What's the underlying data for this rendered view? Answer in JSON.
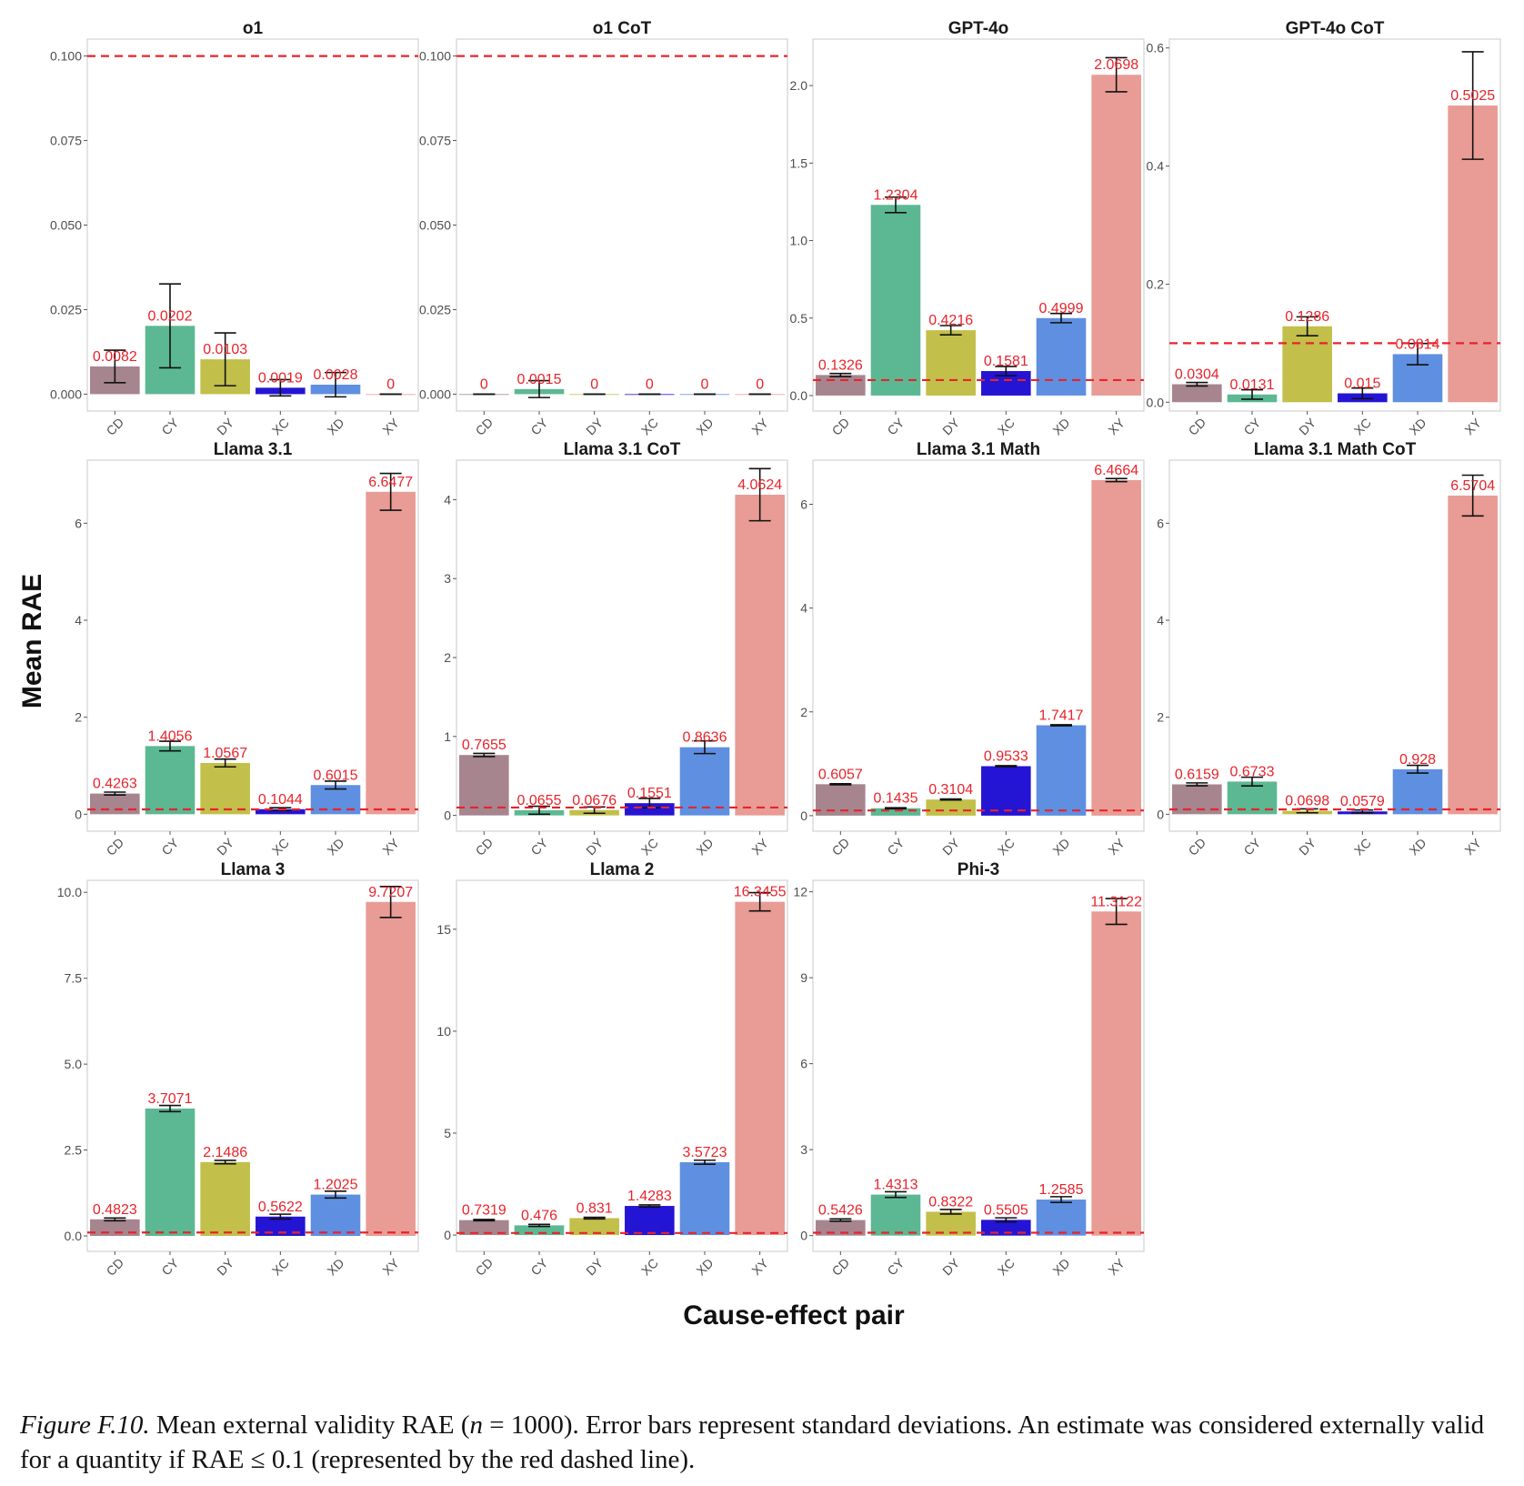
{
  "chart_data": {
    "type": "bar",
    "layout": "facet-grid",
    "ylabel": "Mean RAE",
    "xlabel": "Cause-effect pair",
    "categories": [
      "CD",
      "CY",
      "DY",
      "XC",
      "XD",
      "XY"
    ],
    "category_colors": [
      "#a6858f",
      "#5cb893",
      "#c2bf4a",
      "#2414d4",
      "#5f8fe0",
      "#e89c95"
    ],
    "threshold": 0.1,
    "threshold_color": "#e8232b",
    "label_color": "#e8232b",
    "panels": [
      {
        "title": "o1",
        "values": [
          0.0082,
          0.0202,
          0.0103,
          0.0019,
          0.0028,
          0
        ],
        "labels": [
          "0.0082",
          "0.0202",
          "0.0103",
          "0.0019",
          "0.0028",
          "0"
        ],
        "sd": [
          0.0048,
          0.0124,
          0.0078,
          0.0024,
          0.0036,
          0
        ],
        "ylim": [
          -0.005,
          0.105
        ],
        "ticks": [
          "0.000",
          "0.025",
          "0.050",
          "0.075",
          "0.100"
        ],
        "tick_values": [
          0,
          0.025,
          0.05,
          0.075,
          0.1
        ]
      },
      {
        "title": "o1 CoT",
        "values": [
          0,
          0.0015,
          0,
          0,
          0,
          0
        ],
        "labels": [
          "0",
          "0.0015",
          "0",
          "0",
          "0",
          "0"
        ],
        "sd": [
          0,
          0.0025,
          0,
          0,
          0,
          0
        ],
        "ylim": [
          -0.005,
          0.105
        ],
        "ticks": [
          "0.000",
          "0.025",
          "0.050",
          "0.075",
          "0.100"
        ],
        "tick_values": [
          0,
          0.025,
          0.05,
          0.075,
          0.1
        ]
      },
      {
        "title": "GPT-4o",
        "values": [
          0.1326,
          1.2304,
          0.4216,
          0.1581,
          0.4999,
          2.0698
        ],
        "labels": [
          "0.1326",
          "1.2304",
          "0.4216",
          "0.1581",
          "0.4999",
          "2.0698"
        ],
        "sd": [
          0.01,
          0.05,
          0.03,
          0.03,
          0.03,
          0.11
        ],
        "ylim": [
          -0.1,
          2.3
        ],
        "ticks": [
          "0.0",
          "0.5",
          "1.0",
          "1.5",
          "2.0"
        ],
        "tick_values": [
          0,
          0.5,
          1,
          1.5,
          2
        ]
      },
      {
        "title": "GPT-4o CoT",
        "values": [
          0.0304,
          0.0131,
          0.1286,
          0.015,
          0.0814,
          0.5025
        ],
        "labels": [
          "0.0304",
          "0.0131",
          "0.1286",
          "0.015",
          "0.0814",
          "0.5025"
        ],
        "sd": [
          0.003,
          0.008,
          0.016,
          0.009,
          0.018,
          0.091
        ],
        "ylim": [
          -0.015,
          0.615
        ],
        "ticks": [
          "0.0",
          "0.2",
          "0.4",
          "0.6"
        ],
        "tick_values": [
          0,
          0.2,
          0.4,
          0.6
        ]
      },
      {
        "title": "Llama 3.1",
        "values": [
          0.4263,
          1.4056,
          1.0567,
          0.1044,
          0.6015,
          6.6477
        ],
        "labels": [
          "0.4263",
          "1.4056",
          "1.0567",
          "0.1044",
          "0.6015",
          "6.6477"
        ],
        "sd": [
          0.03,
          0.1,
          0.08,
          0.03,
          0.08,
          0.38
        ],
        "ylim": [
          -0.35,
          7.3
        ],
        "ticks": [
          "0",
          "2",
          "4",
          "6"
        ],
        "tick_values": [
          0,
          2,
          4,
          6
        ]
      },
      {
        "title": "Llama 3.1 CoT",
        "values": [
          0.7655,
          0.0655,
          0.0676,
          0.1551,
          0.8636,
          4.0624
        ],
        "labels": [
          "0.7655",
          "0.0655",
          "0.0676",
          "0.1551",
          "0.8636",
          "4.0624"
        ],
        "sd": [
          0.02,
          0.05,
          0.04,
          0.06,
          0.08,
          0.33
        ],
        "ylim": [
          -0.2,
          4.5
        ],
        "ticks": [
          "0",
          "1",
          "2",
          "3",
          "4"
        ],
        "tick_values": [
          0,
          1,
          2,
          3,
          4
        ]
      },
      {
        "title": "Llama 3.1 Math",
        "values": [
          0.6057,
          0.1435,
          0.3104,
          0.9533,
          1.7417,
          6.4664
        ],
        "labels": [
          "0.6057",
          "0.1435",
          "0.3104",
          "0.9533",
          "1.7417",
          "6.4664"
        ],
        "sd": [
          0.01,
          0.01,
          0.01,
          0.01,
          0.01,
          0.03
        ],
        "ylim": [
          -0.3,
          6.85
        ],
        "ticks": [
          "0",
          "2",
          "4",
          "6"
        ],
        "tick_values": [
          0,
          2,
          4,
          6
        ]
      },
      {
        "title": "Llama 3.1 Math CoT",
        "values": [
          0.6159,
          0.6733,
          0.0698,
          0.0579,
          0.928,
          6.5704
        ],
        "labels": [
          "0.6159",
          "0.6733",
          "0.0698",
          "0.0579",
          "0.928",
          "6.5704"
        ],
        "sd": [
          0.03,
          0.09,
          0.04,
          0.03,
          0.08,
          0.42
        ],
        "ylim": [
          -0.35,
          7.3
        ],
        "ticks": [
          "0",
          "2",
          "4",
          "6"
        ],
        "tick_values": [
          0,
          2,
          4,
          6
        ]
      },
      {
        "title": "Llama 3",
        "values": [
          0.4823,
          3.7071,
          2.1486,
          0.5622,
          1.2025,
          9.7207
        ],
        "labels": [
          "0.4823",
          "3.7071",
          "2.1486",
          "0.5622",
          "1.2025",
          "9.7207"
        ],
        "sd": [
          0.04,
          0.09,
          0.05,
          0.07,
          0.1,
          0.45
        ],
        "ylim": [
          -0.45,
          10.35
        ],
        "ticks": [
          "0.0",
          "2.5",
          "5.0",
          "7.5",
          "10.0"
        ],
        "tick_values": [
          0,
          2.5,
          5,
          7.5,
          10
        ]
      },
      {
        "title": "Llama 2",
        "values": [
          0.7319,
          0.476,
          0.831,
          1.4283,
          3.5723,
          16.3455
        ],
        "labels": [
          "0.7319",
          "0.476",
          "0.831",
          "1.4283",
          "3.5723",
          "16.3455"
        ],
        "sd": [
          0.03,
          0.05,
          0.04,
          0.05,
          0.1,
          0.45
        ],
        "ylim": [
          -0.8,
          17.4
        ],
        "ticks": [
          "0",
          "5",
          "10",
          "15"
        ],
        "tick_values": [
          0,
          5,
          10,
          15
        ]
      },
      {
        "title": "Phi-3",
        "values": [
          0.5426,
          1.4313,
          0.8322,
          0.5505,
          1.2585,
          11.3122
        ],
        "labels": [
          "0.5426",
          "1.4313",
          "0.8322",
          "0.5505",
          "1.2585",
          "11.3122"
        ],
        "sd": [
          0.04,
          0.1,
          0.08,
          0.07,
          0.1,
          0.45
        ],
        "ylim": [
          -0.55,
          12.4
        ],
        "ticks": [
          "0",
          "3",
          "6",
          "9",
          "12"
        ],
        "tick_values": [
          0,
          3,
          6,
          9,
          12
        ]
      }
    ]
  },
  "caption": {
    "figure_label": "Figure F.10.",
    "part1": " Mean external validity RAE (",
    "math_n": "n",
    "part2": " = 1000). Error bars represent standard deviations. An estimate was considered externally valid for a quantity if RAE ≤ 0.1 (represented by the red dashed line)."
  }
}
